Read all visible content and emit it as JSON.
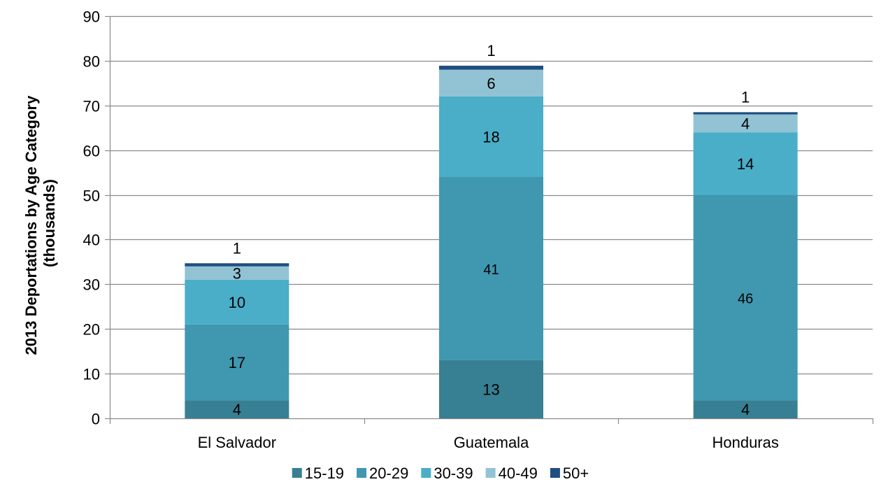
{
  "chart_data": {
    "type": "bar",
    "stacked": true,
    "categories": [
      "El Salvador",
      "Guatemala",
      "Honduras"
    ],
    "series": [
      {
        "name": "15-19",
        "color": "#377f93",
        "values": [
          4,
          13,
          4
        ],
        "display": [
          "4",
          "13",
          "4"
        ]
      },
      {
        "name": "20-29",
        "color": "#4097b0",
        "values": [
          17,
          41,
          46
        ],
        "display": [
          "17",
          "41",
          "46"
        ]
      },
      {
        "name": "30-39",
        "color": "#4aaec8",
        "values": [
          10,
          18,
          14
        ],
        "display": [
          "10",
          "18",
          "14"
        ]
      },
      {
        "name": "40-49",
        "color": "#92c3d4",
        "values": [
          3,
          6,
          4
        ],
        "display": [
          "3",
          "6",
          "4"
        ]
      },
      {
        "name": "50+",
        "color": "#1f4e80",
        "values": [
          0.7,
          0.9,
          0.5
        ],
        "display": [
          "1",
          "1",
          "1"
        ]
      }
    ],
    "ylabel": "2013 Deportations by Age Category (thousands)",
    "ylabel_lines": [
      "2013 Deportations by Age Category",
      "(thousands)"
    ],
    "ylim": [
      0,
      90
    ],
    "yticks": [
      0,
      10,
      20,
      30,
      40,
      50,
      60,
      70,
      80,
      90
    ],
    "grid": true,
    "legend_position": "bottom"
  }
}
